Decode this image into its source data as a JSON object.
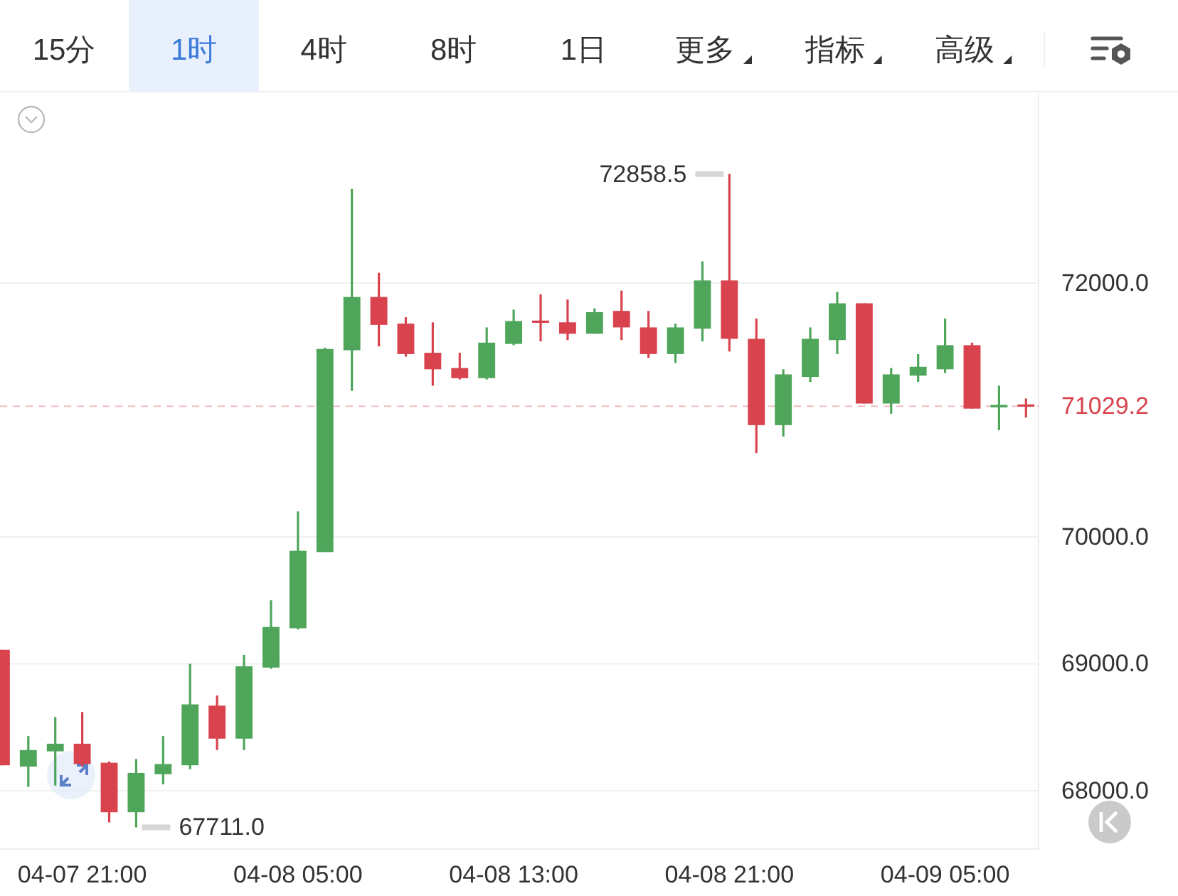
{
  "chart_data": {
    "type": "candlestick",
    "x": [
      "--04-07T18:00",
      "--04-07T19:00",
      "--04-07T20:00",
      "--04-07T21:00",
      "--04-07T22:00",
      "--04-07T23:00",
      "--04-08T00:00",
      "--04-08T01:00",
      "--04-08T02:00",
      "--04-08T03:00",
      "--04-08T04:00",
      "--04-08T05:00",
      "--04-08T06:00",
      "--04-08T07:00",
      "--04-08T08:00",
      "--04-08T09:00",
      "--04-08T10:00",
      "--04-08T11:00",
      "--04-08T12:00",
      "--04-08T13:00",
      "--04-08T14:00",
      "--04-08T15:00",
      "--04-08T16:00",
      "--04-08T17:00",
      "--04-08T18:00",
      "--04-08T19:00",
      "--04-08T20:00",
      "--04-08T21:00",
      "--04-08T22:00",
      "--04-08T23:00",
      "--04-09T00:00",
      "--04-09T01:00",
      "--04-09T02:00",
      "--04-09T03:00",
      "--04-09T04:00",
      "--04-09T05:00",
      "--04-09T06:00",
      "--04-09T07:00",
      "--04-09T08:00"
    ],
    "ohlc": [
      [
        69110,
        69110,
        68200,
        68200
      ],
      [
        68190,
        68430,
        68030,
        68320
      ],
      [
        68310,
        68580,
        68040,
        68370
      ],
      [
        68370,
        68620,
        68190,
        68210
      ],
      [
        68220,
        68230,
        67750,
        67830
      ],
      [
        67830,
        68250,
        67711.0,
        68140
      ],
      [
        68130,
        68430,
        68050,
        68210
      ],
      [
        68200,
        69000,
        68170,
        68680
      ],
      [
        68670,
        68750,
        68320,
        68410
      ],
      [
        68410,
        69070,
        68320,
        68980
      ],
      [
        68970,
        69500,
        68960,
        69290
      ],
      [
        69280,
        70200,
        69270,
        69890
      ],
      [
        69880,
        71490,
        69880,
        71480
      ],
      [
        71470,
        72740,
        71150,
        71890
      ],
      [
        71890,
        72080,
        71500,
        71670
      ],
      [
        71680,
        71730,
        71420,
        71440
      ],
      [
        71450,
        71690,
        71190,
        71320
      ],
      [
        71330,
        71450,
        71240,
        71250
      ],
      [
        71250,
        71650,
        71240,
        71530
      ],
      [
        71520,
        71790,
        71510,
        71700
      ],
      [
        71700,
        71910,
        71540,
        71690
      ],
      [
        71690,
        71870,
        71550,
        71600
      ],
      [
        71600,
        71800,
        71600,
        71770
      ],
      [
        71780,
        71940,
        71550,
        71650
      ],
      [
        71650,
        71780,
        71410,
        71440
      ],
      [
        71440,
        71680,
        71370,
        71650
      ],
      [
        71640,
        72170,
        71540,
        72020
      ],
      [
        72020,
        72858.5,
        71460,
        71560
      ],
      [
        71560,
        71720,
        70660,
        70880
      ],
      [
        70880,
        71320,
        70790,
        71280
      ],
      [
        71260,
        71650,
        71220,
        71560
      ],
      [
        71550,
        71930,
        71440,
        71840
      ],
      [
        71840,
        71840,
        71050,
        71050
      ],
      [
        71050,
        71330,
        70970,
        71280
      ],
      [
        71270,
        71440,
        71220,
        71340
      ],
      [
        71320,
        71720,
        71290,
        71510
      ],
      [
        71510,
        71530,
        71010,
        71010
      ],
      [
        71020,
        71190,
        70840,
        71040
      ],
      [
        71040,
        71090,
        70940,
        71029.2
      ]
    ],
    "colors": [
      "#d8434e",
      "#4fa65b",
      "#4fa65b",
      "#d8434e",
      "#d8434e",
      "#4fa65b",
      "#4fa65b",
      "#4fa65b",
      "#d8434e",
      "#4fa65b",
      "#4fa65b",
      "#4fa65b",
      "#4fa65b",
      "#4fa65b",
      "#d8434e",
      "#d8434e",
      "#d8434e",
      "#d8434e",
      "#4fa65b",
      "#4fa65b",
      "#d8434e",
      "#d8434e",
      "#4fa65b",
      "#d8434e",
      "#d8434e",
      "#4fa65b",
      "#4fa65b",
      "#d8434e",
      "#d8434e",
      "#4fa65b",
      "#4fa65b",
      "#4fa65b",
      "#d8434e",
      "#4fa65b",
      "#4fa65b",
      "#4fa65b",
      "#d8434e",
      "#4fa65b",
      "#d8434e"
    ],
    "xlim": [
      "--04-07T17:57",
      "--04-09T08:28"
    ],
    "xticks": [
      {
        "value": "--04-07T21:00",
        "label": "04-07 21:00"
      },
      {
        "value": "--04-08T05:00",
        "label": "04-08 05:00"
      },
      {
        "value": "--04-08T13:00",
        "label": "04-08 13:00"
      },
      {
        "value": "--04-08T21:00",
        "label": "04-08 21:00"
      },
      {
        "value": "--04-09T05:00",
        "label": "04-09 05:00"
      }
    ],
    "ylim": [
      67540,
      73490
    ],
    "yticks": [
      {
        "value": 68000,
        "label": "68000.0"
      },
      {
        "value": 69000,
        "label": "69000.0"
      },
      {
        "value": 70000,
        "label": "70000.0"
      },
      {
        "value": 72000,
        "label": "72000.0"
      }
    ],
    "grid": "y",
    "ref_lines": [
      {
        "axis": "y",
        "value": 71029.2,
        "label": "71029.2",
        "color": "#d8434e",
        "line_style": "dashed"
      }
    ],
    "annotations": [
      "15分",
      "1时",
      "4时",
      "8时",
      "1日",
      "更多",
      "指标",
      "高级",
      {
        "text": "72858.5",
        "x": "--04-08T21:00",
        "y": 72858.5
      },
      {
        "text": "67711.0",
        "x": "--04-07T23:00",
        "y": 67711.0
      }
    ]
  }
}
